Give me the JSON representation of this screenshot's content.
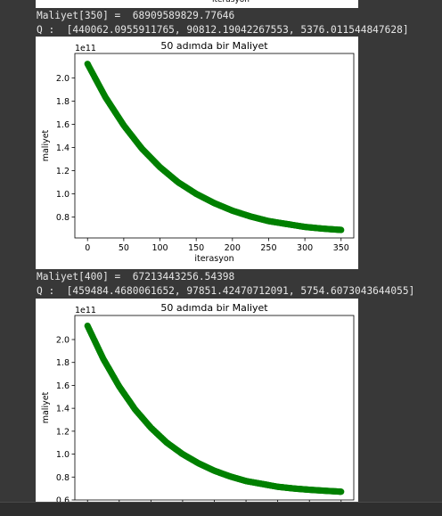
{
  "top_fig": {
    "xlabel": "iterasyon"
  },
  "outputs": [
    {
      "cost_line": "Maliyet[350] =  68909589829.77646",
      "q_line": "Q :  [440062.0955911765, 90812.19042267553, 5376.011544847628]"
    },
    {
      "cost_line": "Maliyet[400] =  67213443256.54398",
      "q_line": "Q :  [459484.4680061652, 97851.42470712091, 5754.6073043644055]"
    }
  ],
  "chart_data": [
    {
      "type": "scatter",
      "title": "50 adımda bir Maliyet",
      "xlabel": "iterasyon",
      "ylabel": "maliyet",
      "y_offset_label": "1e11",
      "x_ticks": [
        0,
        50,
        100,
        150,
        200,
        250,
        300,
        350
      ],
      "x_tick_labels": [
        "0",
        "50",
        "100",
        "150",
        "200",
        "250",
        "300",
        "350"
      ],
      "y_ticks": [
        0.8,
        1.0,
        1.2,
        1.4,
        1.6,
        1.8,
        2.0
      ],
      "y_tick_labels": [
        "0.8",
        "1.0",
        "1.2",
        "1.4",
        "1.6",
        "1.8",
        "2.0"
      ],
      "xlim": [
        -17.5,
        367.5
      ],
      "ylim": [
        0.62,
        2.21
      ],
      "marker_color": "#008000",
      "series": [
        {
          "x": [
            0,
            25,
            50,
            75,
            100,
            125,
            150,
            175,
            200,
            225,
            250,
            275,
            300,
            325,
            350
          ],
          "y": [
            2.12,
            1.83,
            1.59,
            1.39,
            1.23,
            1.1,
            1.0,
            0.92,
            0.855,
            0.805,
            0.765,
            0.74,
            0.715,
            0.7,
            0.689
          ]
        }
      ]
    },
    {
      "type": "scatter",
      "title": "50 adımda bir Maliyet",
      "xlabel": "",
      "ylabel": "maliyet",
      "y_offset_label": "1e11",
      "x_ticks": [
        0,
        50,
        100,
        150,
        200,
        250,
        300,
        350,
        400
      ],
      "x_tick_labels": [],
      "y_ticks": [
        0.6,
        0.8,
        1.0,
        1.2,
        1.4,
        1.6,
        1.8,
        2.0
      ],
      "y_tick_labels": [
        "0.6",
        "0.8",
        "1.0",
        "1.2",
        "1.4",
        "1.6",
        "1.8",
        "2.0"
      ],
      "xlim": [
        -20,
        420
      ],
      "ylim": [
        0.6,
        2.21
      ],
      "marker_color": "#008000",
      "series": [
        {
          "x": [
            0,
            25,
            50,
            75,
            100,
            125,
            150,
            175,
            200,
            225,
            250,
            275,
            300,
            325,
            350,
            375,
            400
          ],
          "y": [
            2.12,
            1.83,
            1.59,
            1.39,
            1.23,
            1.1,
            1.0,
            0.92,
            0.855,
            0.805,
            0.765,
            0.74,
            0.715,
            0.7,
            0.689,
            0.68,
            0.672
          ]
        }
      ]
    }
  ]
}
